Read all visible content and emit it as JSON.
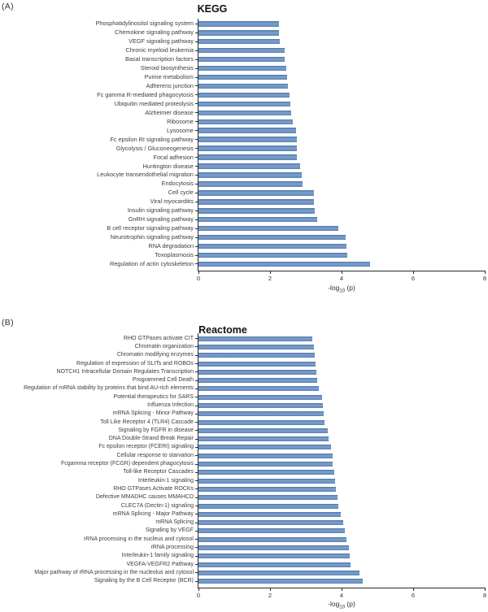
{
  "panels": [
    "(A)",
    "(B)"
  ],
  "chart_data": [
    {
      "type": "bar",
      "orientation": "horizontal",
      "title": "KEGG",
      "xlabel": "-log10 (p)",
      "xlabel_parts": {
        "prefix": "-log",
        "sub": "10",
        "suffix": " (p)"
      },
      "xlim": [
        0,
        8
      ],
      "xticks": [
        0,
        2,
        4,
        6,
        8
      ],
      "grid": false,
      "legend": "none",
      "bar_color": "#6f94c5",
      "categories": [
        "Phosphatidylinositol signaling system",
        "Chemokine signaling pathway",
        "VEGF signaling pathway",
        "Chronic myeloid leukemia",
        "Basal transcription factors",
        "Steroid biosynthesis",
        "Purine metabolism",
        "Adherens junction",
        "Fc gamma R-mediated phagocytosis",
        "Ubiquitin mediated proteolysis",
        "Alzheimer disease",
        "Ribosome",
        "Lysosome",
        "Fc epsilon RI signaling pathway",
        "Glycolysis / Gluconeogenesis",
        "Focal adhesion",
        "Huntington disease",
        "Leukocyte transendothelial migration",
        "Endocytosis",
        "Cell cycle",
        "Viral myocarditis",
        "Insulin signaling pathway",
        "GnRH signaling pathway",
        "B cell receptor signaling pathway",
        "Neurotrophin signaling pathway",
        "RNA degradation",
        "Toxoplasmosis",
        "Regulation of actin cytoskeleton"
      ],
      "values": [
        2.25,
        2.25,
        2.28,
        2.41,
        2.42,
        2.45,
        2.47,
        2.51,
        2.54,
        2.56,
        2.6,
        2.63,
        2.72,
        2.74,
        2.75,
        2.76,
        2.83,
        2.89,
        2.91,
        3.22,
        3.23,
        3.24,
        3.31,
        3.91,
        4.11,
        4.14,
        4.17,
        4.8
      ]
    },
    {
      "type": "bar",
      "orientation": "horizontal",
      "title": "Reactome",
      "xlabel": "-log10 (p)",
      "xlabel_parts": {
        "prefix": "-log",
        "sub": "10",
        "suffix": " (p)"
      },
      "xlim": [
        0,
        8
      ],
      "xticks": [
        0,
        2,
        4,
        6,
        8
      ],
      "grid": false,
      "legend": "none",
      "bar_color": "#6f94c5",
      "categories": [
        "RHO GTPases activate CIT",
        "Chromatin organization",
        "Chromatin modifying enzymes",
        "Regulation of expression of SLITs and ROBOs",
        "NOTCH1 Intracellular Domain Regulates Transcription",
        "Programmed Cell Death",
        "Regulation of mRNA stability by proteins that bind AU-rich elements",
        "Potential therapeutics for SARS",
        "Influenza Infection",
        "mRNA Splicing - Minor Pathway",
        "Toll Like Receptor 4 (TLR4) Cascade",
        "Signaling by FGFR in disease",
        "DNA Double-Strand Break Repair",
        "Fc epsilon receptor (FCERI) signaling",
        "Cellular response to starvation",
        "Fcgamma receptor (FCGR) dependent phagocytosis",
        "Toll-like Receptor Cascades",
        "Interleukin-1 signaling",
        "RHO GTPases Activate ROCKs",
        "Defective MMADHC causes MMAHCD",
        "CLEC7A (Dectin-1) signaling",
        "mRNA Splicing - Major Pathway",
        "mRNA Splicing",
        "Signaling by VEGF",
        "rRNA processing in the nucleus and cytosol",
        "rRNA processing",
        "Interleukin-1 family signaling",
        "VEGFA-VEGFR2 Pathway",
        "Major pathway of rRNA processing in the nucleolus and cytosol",
        "Signaling by the B Cell Receptor (BCR)"
      ],
      "values": [
        3.19,
        3.23,
        3.24,
        3.27,
        3.3,
        3.31,
        3.36,
        3.45,
        3.48,
        3.49,
        3.52,
        3.61,
        3.63,
        3.7,
        3.74,
        3.76,
        3.79,
        3.81,
        3.85,
        3.88,
        3.91,
        3.97,
        4.05,
        4.08,
        4.14,
        4.21,
        4.22,
        4.25,
        4.5,
        4.6
      ]
    }
  ]
}
